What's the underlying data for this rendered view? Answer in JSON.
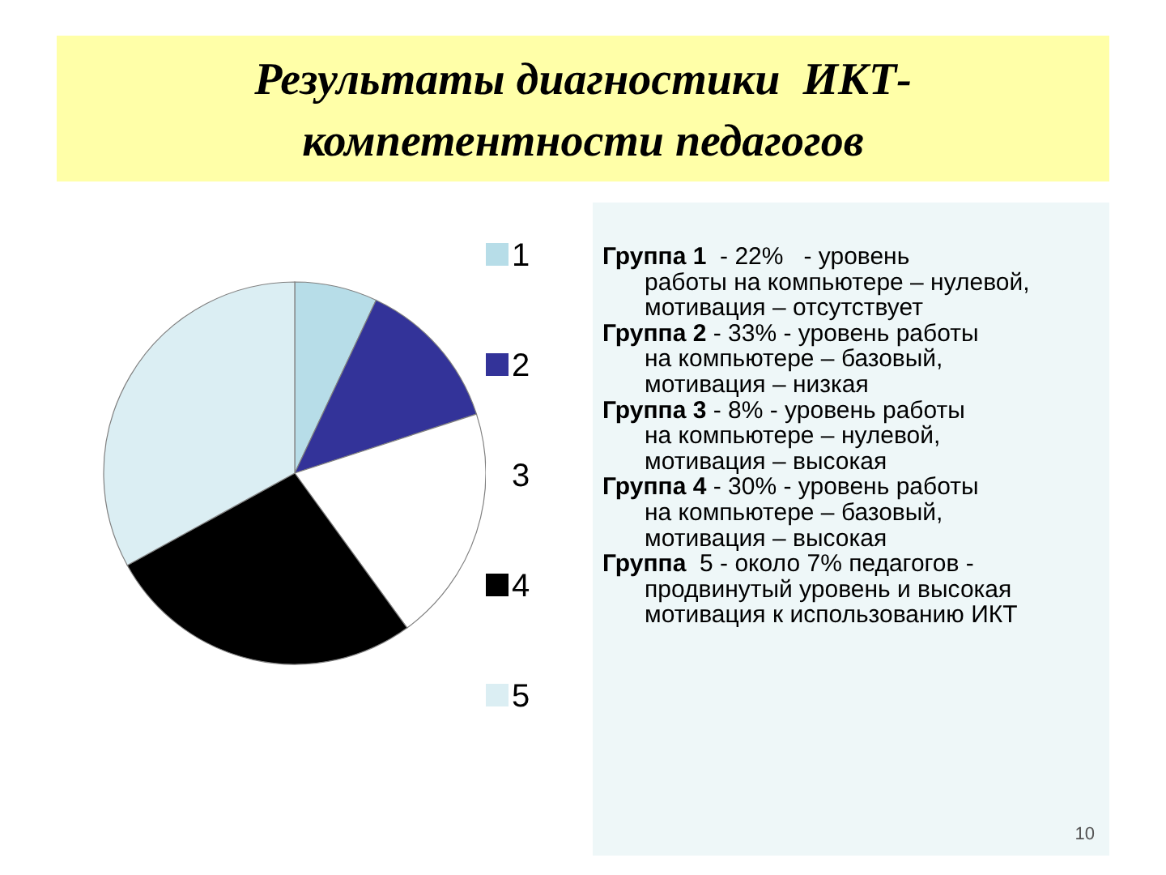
{
  "chart_data": {
    "type": "pie",
    "title": "Результаты диагностики  ИКТ-\nкомпетентности педагогов",
    "categories": [
      "1",
      "2",
      "3",
      "4",
      "5"
    ],
    "values": [
      7,
      13,
      20,
      27,
      33
    ],
    "colors": [
      "#b7dde8",
      "#333399",
      "#ffffff",
      "#000000",
      "#dbeef3"
    ],
    "legend": "right",
    "annotations": [
      "Группа 1  - 22%   - уровень работы на компьютере – нулевой, мотивация – отсутствует",
      "Группа 2 - 33% - уровень работы на компьютере – базовый, мотивация – низкая",
      "Группа 3 - 8% - уровень работы на компьютере – нулевой, мотивация – высокая",
      "Группа 4 - 30% - уровень работы на компьютере – базовый, мотивация – высокая",
      "Группа  5 - около 7% педагогов - продвинутый уровень и высокая мотивация к использованию ИКТ",
      "10"
    ]
  }
}
